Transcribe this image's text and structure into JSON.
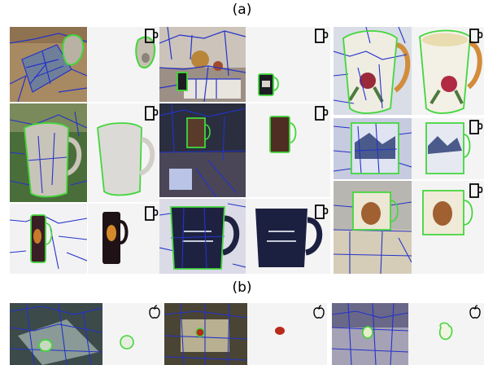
{
  "labels": {
    "a": "(a)",
    "b": "(b)"
  },
  "colors": {
    "segment_boundary": "#2433c8",
    "object_outline": "#43d63c",
    "masked_background": "#f4f4f4"
  },
  "icons": {
    "mug": "mug-icon",
    "apple": "apple-icon"
  }
}
